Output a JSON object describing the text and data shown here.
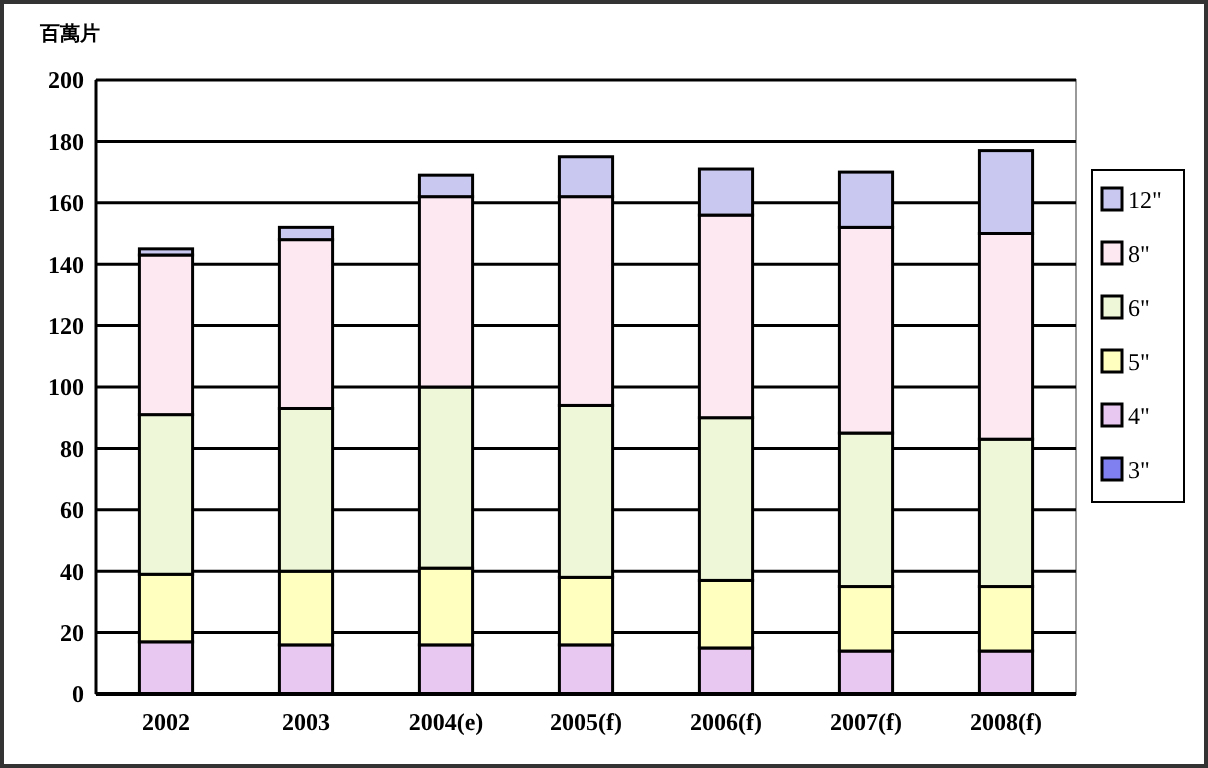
{
  "chart_data": {
    "type": "bar",
    "ylabel": "百萬片",
    "categories": [
      "2002",
      "2003",
      "2004(e)",
      "2005(f)",
      "2006(f)",
      "2007(f)",
      "2008(f)"
    ],
    "stacked": true,
    "ylim": [
      0,
      200
    ],
    "yticks": [
      0,
      20,
      40,
      60,
      80,
      100,
      120,
      140,
      160,
      180,
      200
    ],
    "grid": "y",
    "legend": "right",
    "series": [
      {
        "name": "3\"",
        "color": "#8080f0",
        "values": [
          null,
          null,
          null,
          0,
          0,
          0,
          0
        ]
      },
      {
        "name": "4\"",
        "color": "#e8c8f0",
        "values": [
          17,
          16,
          16,
          16,
          15,
          14,
          14
        ]
      },
      {
        "name": "5\"",
        "color": "#ffffc0",
        "values": [
          22,
          24,
          25,
          22,
          22,
          21,
          21
        ]
      },
      {
        "name": "6\"",
        "color": "#eef8d8",
        "values": [
          52,
          53,
          59,
          56,
          53,
          50,
          48
        ]
      },
      {
        "name": "8\"",
        "color": "#fde8f2",
        "values": [
          52,
          55,
          62,
          68,
          66,
          67,
          67
        ]
      },
      {
        "name": "12\"",
        "color": "#c8c8f0",
        "values": [
          2,
          4,
          7,
          13,
          15,
          18,
          27
        ]
      }
    ]
  }
}
